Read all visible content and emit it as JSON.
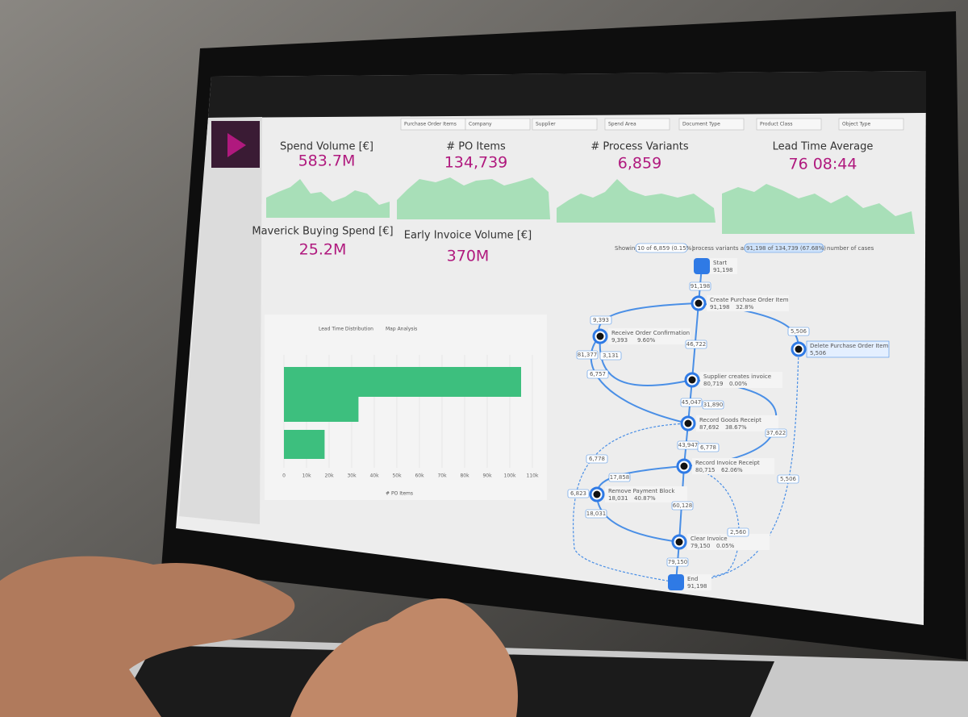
{
  "filters": [
    "Purchase Order Items",
    "Company",
    "Supplier",
    "Spend Area",
    "Document Type",
    "Product Class",
    "Object Type"
  ],
  "kpis": [
    {
      "label": "Spend Volume [€]",
      "value": "583.7M"
    },
    {
      "label": "# PO Items",
      "value": "134,739"
    },
    {
      "label": "# Process Variants",
      "value": "6,859"
    },
    {
      "label": "Lead Time Average",
      "value": "76 08:44"
    },
    {
      "label": "Maverick Buying Spend [€]",
      "value": "25.2M"
    },
    {
      "label": "Early Invoice Volume [€]",
      "value": "370M"
    }
  ],
  "tabs": [
    "Lead Time Distribution",
    "Map Analysis"
  ],
  "bar_chart": {
    "type": "bar",
    "orientation": "horizontal",
    "categories": [
      null,
      null,
      null
    ],
    "values": [
      105000,
      33000,
      18000
    ],
    "color": "#3dbf7e",
    "xlim": [
      0,
      110000
    ],
    "xticks": [
      0,
      {
        "value": 10000,
        "label": "10k"
      },
      {
        "value": 20000,
        "label": "20k"
      },
      {
        "value": 30000,
        "label": "30k"
      },
      {
        "value": 40000,
        "label": "40k"
      },
      {
        "value": 50000,
        "label": "50k"
      },
      {
        "value": 60000,
        "label": "60k"
      },
      {
        "value": 70000,
        "label": "70k"
      },
      {
        "value": 80000,
        "label": "80k"
      },
      {
        "value": 90000,
        "label": "90k"
      },
      {
        "value": 100000,
        "label": "100k"
      },
      {
        "value": 110000,
        "label": "110k"
      }
    ],
    "grid": true,
    "xlabel": "# PO Items"
  },
  "process_map": {
    "summary": [
      "Showing",
      "10 of 6,859 (0.15%)",
      "process variants and",
      "91,198 of 134,739 (67.68%)",
      "number of cases"
    ],
    "nodes": [
      {
        "label": "Start",
        "count": "91,198"
      },
      {
        "label": "Create Purchase Order Item",
        "count": "91,198",
        "share": "32.8%"
      },
      {
        "label": "Receive Order Confirmation",
        "count": "9,393",
        "share": "9.60%"
      },
      {
        "label": "Delete Purchase Order Item",
        "count": "5,506"
      },
      {
        "label": "Supplier creates invoice",
        "count": "80,719",
        "share": "0.00%"
      },
      {
        "label": "Record Goods Receipt",
        "count": "87,692",
        "share": "38.67%"
      },
      {
        "label": "Record Invoice Receipt",
        "count": "80,715",
        "share": "62.06%"
      },
      {
        "label": "Remove Payment Block",
        "count": "18,031",
        "share": "40.87%"
      },
      {
        "label": "Clear Invoice",
        "count": "79,150",
        "share": "0.05%"
      },
      {
        "label": "End",
        "count": "91,198"
      }
    ],
    "edges": [
      "91,198",
      "9,393",
      "81,377",
      "3,131",
      "46,722",
      "6,757",
      "5,506",
      "45,047",
      "31,890",
      "43,947",
      "6,778",
      "37,622",
      "6,778",
      "17,858",
      "6,823",
      "18,031",
      "60,128",
      "2,560",
      "5,506",
      "79,150"
    ]
  }
}
